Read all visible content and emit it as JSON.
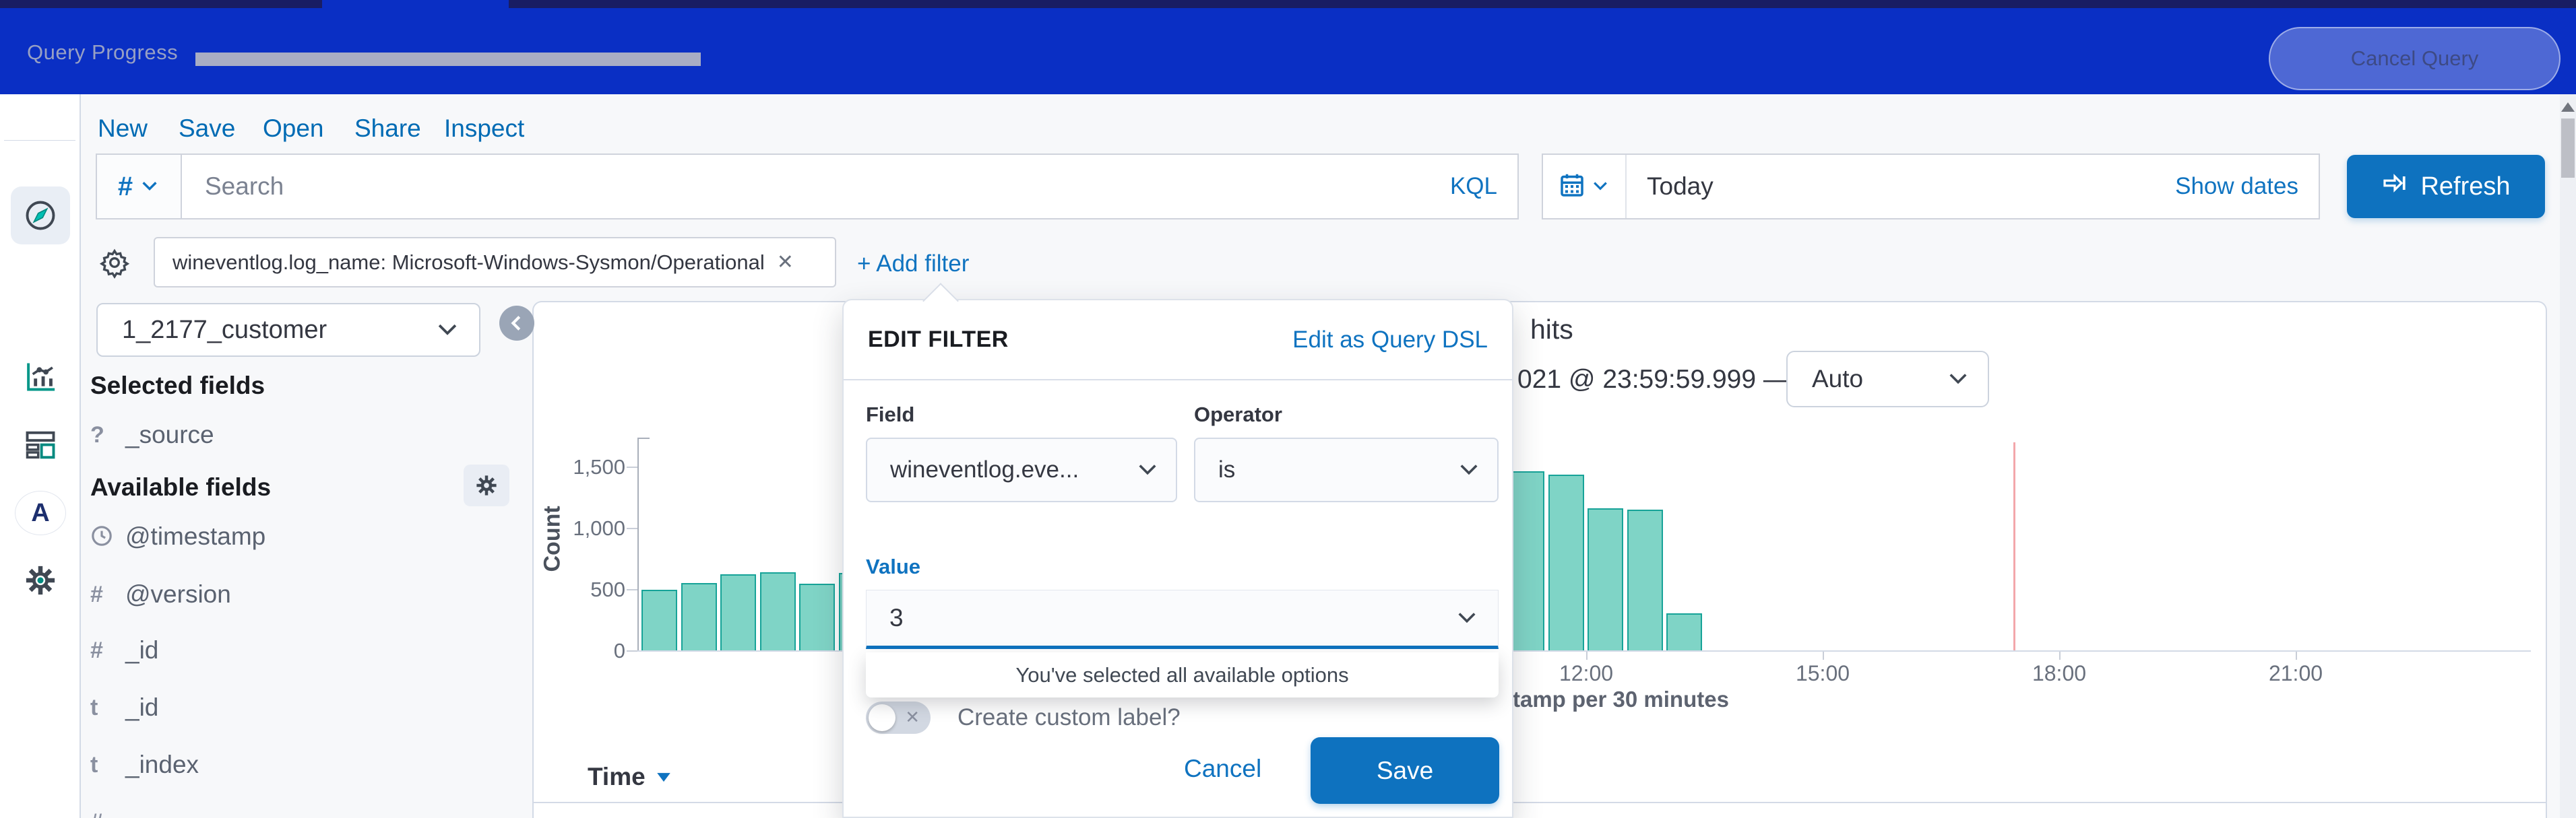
{
  "topbar": {
    "title": "Query Progress",
    "cancel_label": "Cancel Query"
  },
  "menu": [
    "New",
    "Save",
    "Open",
    "Share",
    "Inspect"
  ],
  "query_bar": {
    "filter_set_symbol": "#",
    "search_placeholder": "Search",
    "language": "KQL"
  },
  "date_picker": {
    "value": "Today",
    "show_dates_label": "Show dates",
    "refresh_label": "Refresh"
  },
  "filter_bar": {
    "pill_text": "wineventlog.log_name: Microsoft-Windows-Sysmon/Operational",
    "pill_close": "✕",
    "add_filter_label": "+ Add filter"
  },
  "sidebar": {
    "index_pattern": "1_2177_customer",
    "selected_heading": "Selected fields",
    "selected_fields": [
      {
        "type": "?",
        "name": "_source"
      }
    ],
    "available_heading": "Available fields",
    "available_fields": [
      {
        "type": "clock",
        "name": "@timestamp"
      },
      {
        "type": "#",
        "name": "@version"
      },
      {
        "type": "#",
        "name": "_id"
      },
      {
        "type": "t",
        "name": "_id"
      },
      {
        "type": "t",
        "name": "_index"
      },
      {
        "type": "#",
        "name": ""
      }
    ]
  },
  "results_header": {
    "hits_text": "hits",
    "range_text": "021 @ 23:59:59.999 —",
    "interval_value": "Auto"
  },
  "table": {
    "time_header": "Time"
  },
  "popover": {
    "title": "EDIT FILTER",
    "dsl_link": "Edit as Query DSL",
    "field_label": "Field",
    "field_value": "wineventlog.eve...",
    "operator_label": "Operator",
    "operator_value": "is",
    "value_label": "Value",
    "value": "3",
    "options_hint": "You've selected all available options",
    "toggle_x": "✕",
    "custom_label": "Create custom label?",
    "cancel_label": "Cancel",
    "save_label": "Save"
  },
  "chart_data": {
    "type": "bar",
    "title": "hits histogram",
    "xlabel_visible": "tamp per 30 minutes",
    "ylabel": "Count",
    "interval": "30 minutes",
    "ylim": [
      0,
      1750
    ],
    "yticks": [
      {
        "label": "0",
        "value": 0
      },
      {
        "label": "500",
        "value": 500
      },
      {
        "label": "1,000",
        "value": 1000
      },
      {
        "label": "1,500",
        "value": 1500
      }
    ],
    "xticks": [
      {
        "label": "12:00",
        "time": "12:00"
      },
      {
        "label": "15:00",
        "time": "15:00"
      },
      {
        "label": "18:00",
        "time": "18:00"
      },
      {
        "label": "21:00",
        "time": "21:00"
      }
    ],
    "bars": [
      {
        "time": "00:00",
        "value": 495
      },
      {
        "time": "00:30",
        "value": 550
      },
      {
        "time": "01:00",
        "value": 620
      },
      {
        "time": "01:30",
        "value": 640
      },
      {
        "time": "02:00",
        "value": 545
      },
      {
        "time": "02:30",
        "value": 630
      },
      {
        "time": "11:00",
        "value": 1460
      },
      {
        "time": "11:30",
        "value": 1435
      },
      {
        "time": "12:00",
        "value": 1160
      },
      {
        "time": "12:30",
        "value": 1150
      },
      {
        "time": "13:00",
        "value": 300
      }
    ],
    "time_marker": "17:25",
    "bar_color": "#7fd4c6",
    "bar_border_color": "#17a398",
    "marker_color": "#f3a7ab"
  }
}
